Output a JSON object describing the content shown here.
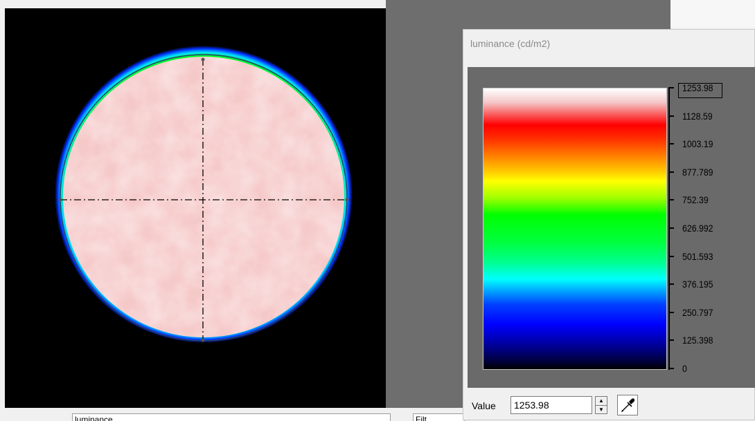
{
  "legend_window": {
    "title": "luminance (cd/m2)",
    "scale_labels": [
      "1253.98",
      "1128.59",
      "1003.19",
      "877.789",
      "752.39",
      "626.992",
      "501.593",
      "376.195",
      "250.797",
      "125.398",
      "0"
    ],
    "value_label": "Value",
    "value": "1253.98"
  },
  "bottom_bar": {
    "field_label": "luminance",
    "filter_label": "Filt"
  },
  "icons": {
    "eyedropper": "eyedropper-icon",
    "spin_up": "spin-up-icon",
    "spin_down": "spin-down-icon"
  }
}
